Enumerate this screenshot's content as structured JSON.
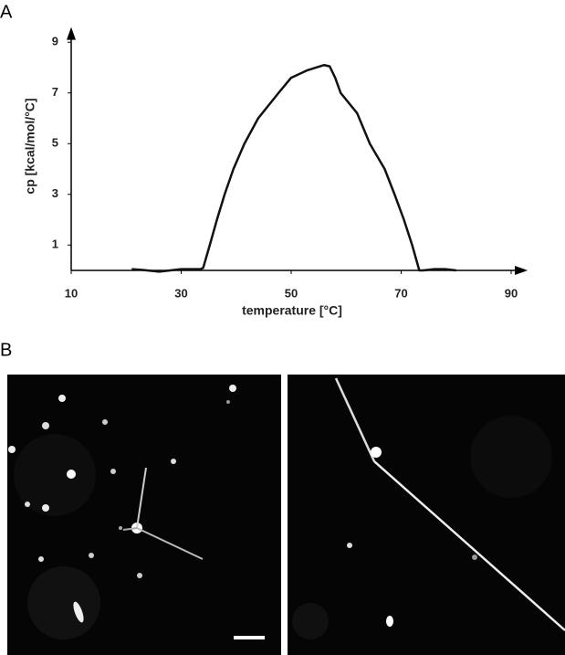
{
  "panel_labels": [
    "A",
    "B"
  ],
  "chart_data": {
    "type": "line",
    "xlabel": "temperature [°C]",
    "ylabel": "cp [kcal/mol/°C]",
    "x": [
      21,
      23,
      26,
      28,
      30,
      32,
      33.5,
      34,
      35.2,
      36.5,
      37.9,
      39.5,
      41.5,
      44,
      47.7,
      50,
      53,
      56,
      57,
      58,
      59,
      62,
      64.3,
      67,
      68.8,
      70.5,
      72,
      73.3,
      74,
      76,
      78,
      80
    ],
    "series": [
      {
        "color": "#111111",
        "values": [
          0.05,
          0.02,
          -0.05,
          0,
          0.05,
          0.05,
          0.05,
          0.1,
          1,
          2,
          3,
          4,
          5,
          6,
          7,
          7.6,
          7.9,
          8.1,
          8.05,
          7.6,
          7,
          6.2,
          5,
          4,
          3,
          2,
          1,
          0,
          0,
          0.05,
          0.05,
          0
        ]
      }
    ],
    "xlim": [
      10,
      93
    ],
    "ylim": [
      0,
      9.6
    ],
    "xticks": [
      10,
      30,
      50,
      70,
      90
    ],
    "yticks": [
      1,
      3,
      5,
      7,
      9
    ]
  }
}
